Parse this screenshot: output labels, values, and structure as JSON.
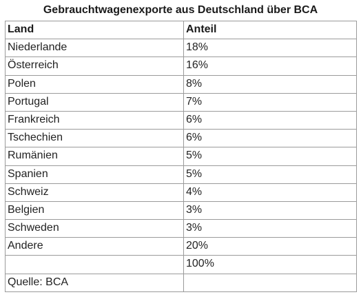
{
  "chart_data": {
    "type": "table",
    "title": "Gebrauchtwagenexporte aus Deutschland über BCA",
    "columns": [
      "Land",
      "Anteil"
    ],
    "rows": [
      [
        "Niederlande",
        "18%"
      ],
      [
        "Österreich",
        "16%"
      ],
      [
        "Polen",
        "8%"
      ],
      [
        "Portugal",
        "7%"
      ],
      [
        "Frankreich",
        "6%"
      ],
      [
        "Tschechien",
        "6%"
      ],
      [
        "Rumänien",
        "5%"
      ],
      [
        "Spanien",
        "5%"
      ],
      [
        "Schweiz",
        "4%"
      ],
      [
        "Belgien",
        "3%"
      ],
      [
        "Schweden",
        "3%"
      ],
      [
        "Andere",
        "20%"
      ],
      [
        "",
        "100%"
      ],
      [
        "Quelle: BCA",
        ""
      ]
    ]
  }
}
